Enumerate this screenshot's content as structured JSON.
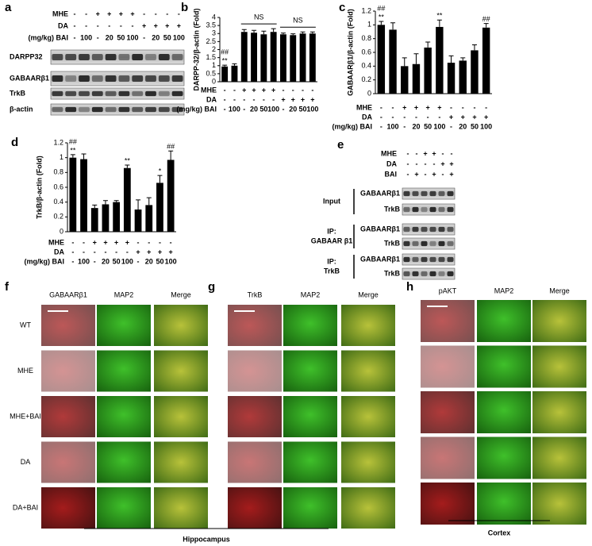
{
  "panel_labels": [
    "a",
    "b",
    "c",
    "d",
    "e",
    "f",
    "g",
    "h"
  ],
  "blot_a": {
    "conditions": [
      {
        "name": "MHE",
        "values": [
          "-",
          "-",
          "+",
          "+",
          "+",
          "+",
          "-",
          "-",
          "-",
          "-"
        ]
      },
      {
        "name": "DA",
        "values": [
          "-",
          "-",
          "-",
          "-",
          "-",
          "-",
          "+",
          "+",
          "+",
          "+"
        ]
      },
      {
        "name": "(mg/kg) BAI",
        "values": [
          "-",
          "100",
          "-",
          "20",
          "50",
          "100",
          "-",
          "20",
          "50",
          "100"
        ]
      }
    ],
    "bands": [
      "DARPP32",
      "GABAARβ1",
      "TrkB",
      "β-actin"
    ]
  },
  "chart_data": [
    {
      "type": "bar",
      "y_label": "DARPP-32/β-actin (Fold)",
      "color": "#000000",
      "values": [
        0.95,
        1.0,
        3.1,
        3.05,
        2.95,
        3.1,
        2.95,
        2.9,
        3.0,
        3.0
      ],
      "errors": [
        0.08,
        0.12,
        0.15,
        0.15,
        0.2,
        0.2,
        0.08,
        0.08,
        0.1,
        0.1
      ],
      "ylim": [
        0,
        4
      ],
      "yticks": [
        0,
        0.5,
        1,
        1.5,
        2,
        2.5,
        3,
        3.5,
        4
      ],
      "conditions": [
        {
          "name": "MHE",
          "values": [
            "-",
            "-",
            "+",
            "+",
            "+",
            "+",
            "-",
            "-",
            "-",
            "-"
          ]
        },
        {
          "name": "DA",
          "values": [
            "-",
            "-",
            "-",
            "-",
            "-",
            "-",
            "+",
            "+",
            "+",
            "+"
          ]
        },
        {
          "name": "(mg/kg) BAI",
          "values": [
            "-",
            "100",
            "-",
            "20",
            "50",
            "100",
            "-",
            "20",
            "50",
            "100"
          ]
        }
      ],
      "annotations": [
        "**",
        "##",
        "NS",
        "NS"
      ]
    },
    {
      "type": "bar",
      "y_label": "GABAARβ1/β-actin (Fold)",
      "color": "#000000",
      "values": [
        1.0,
        0.93,
        0.4,
        0.43,
        0.67,
        0.97,
        0.45,
        0.48,
        0.63,
        0.96
      ],
      "errors": [
        0.05,
        0.1,
        0.12,
        0.15,
        0.08,
        0.1,
        0.1,
        0.04,
        0.08,
        0.06
      ],
      "ylim": [
        0,
        1.2
      ],
      "yticks": [
        0,
        0.2,
        0.4,
        0.6,
        0.8,
        1,
        1.2
      ],
      "conditions": [
        {
          "name": "MHE",
          "values": [
            "-",
            "-",
            "+",
            "+",
            "+",
            "+",
            "-",
            "-",
            "-",
            "-"
          ]
        },
        {
          "name": "DA",
          "values": [
            "-",
            "-",
            "-",
            "-",
            "-",
            "-",
            "+",
            "+",
            "+",
            "+"
          ]
        },
        {
          "name": "(mg/kg) BAI",
          "values": [
            "-",
            "100",
            "-",
            "20",
            "50",
            "100",
            "-",
            "20",
            "50",
            "100"
          ]
        }
      ],
      "annotations": [
        "**",
        "##",
        "**",
        "##"
      ]
    },
    {
      "type": "bar",
      "y_label": "TrkB/β-actin (Fold)",
      "color": "#000000",
      "values": [
        1.0,
        0.98,
        0.32,
        0.37,
        0.4,
        0.86,
        0.3,
        0.36,
        0.66,
        0.97
      ],
      "errors": [
        0.04,
        0.07,
        0.04,
        0.05,
        0.02,
        0.04,
        0.13,
        0.1,
        0.1,
        0.12
      ],
      "ylim": [
        0,
        1.2
      ],
      "yticks": [
        0,
        0.2,
        0.4,
        0.6,
        0.8,
        1,
        1.2
      ],
      "conditions": [
        {
          "name": "MHE",
          "values": [
            "-",
            "-",
            "+",
            "+",
            "+",
            "+",
            "-",
            "-",
            "-",
            "-"
          ]
        },
        {
          "name": "DA",
          "values": [
            "-",
            "-",
            "-",
            "-",
            "-",
            "-",
            "+",
            "+",
            "+",
            "+"
          ]
        },
        {
          "name": "(mg/kg) BAI",
          "values": [
            "-",
            "100",
            "-",
            "20",
            "50",
            "100",
            "-",
            "20",
            "50",
            "100"
          ]
        }
      ],
      "annotations": [
        "**",
        "##",
        "**",
        "*",
        "##"
      ]
    }
  ],
  "blot_e": {
    "conditions": [
      {
        "name": "MHE",
        "values": [
          "-",
          "-",
          "+",
          "+",
          "-",
          "-"
        ]
      },
      {
        "name": "DA",
        "values": [
          "-",
          "-",
          "-",
          "-",
          "+",
          "+"
        ]
      },
      {
        "name": "BAI",
        "values": [
          "-",
          "+",
          "-",
          "+",
          "-",
          "+"
        ]
      }
    ],
    "groups": [
      {
        "lines": [
          "Input"
        ],
        "bands": [
          "GABAARβ1",
          "TrkB"
        ]
      },
      {
        "lines": [
          "IP:",
          "GABAAR β1"
        ],
        "bands": [
          "GABAARβ1",
          "TrkB"
        ]
      },
      {
        "lines": [
          "IP:",
          "TrkB"
        ],
        "bands": [
          "GABAARβ1",
          "TrkB"
        ]
      }
    ]
  },
  "micro_f": {
    "columns": [
      "GABAARβ1",
      "MAP2",
      "Merge"
    ],
    "rows": [
      "WT",
      "MHE",
      "MHE+BAI",
      "DA",
      "DA+BAI"
    ],
    "region": "Hippocampus"
  },
  "micro_g": {
    "columns": [
      "TrkB",
      "MAP2",
      "Merge"
    ]
  },
  "micro_h": {
    "columns": [
      "pAKT",
      "MAP2",
      "Merge"
    ],
    "region": "Cortex"
  }
}
